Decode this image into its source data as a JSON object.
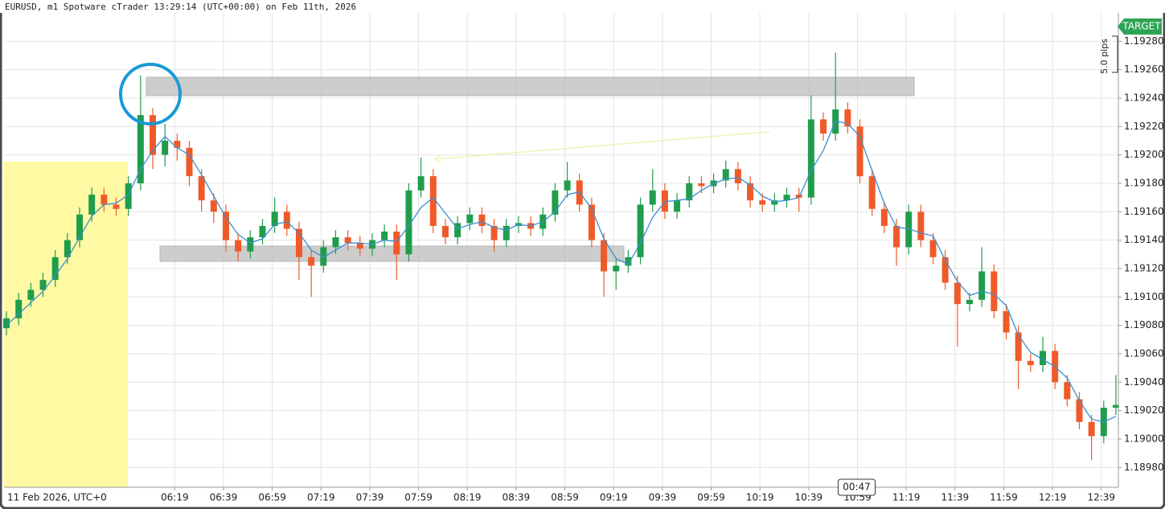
{
  "chart_data": {
    "type": "candlestick",
    "title": "EURUSD, m1 Spotware cTrader 13:29:14 (UTC+00:00) on Feb 11th, 2026",
    "x_start_label": "11 Feb 2026, UTC+0",
    "countdown": "00:47",
    "target_label": "TARGET",
    "pips_label": "5.0 pips",
    "up_color": "#1f9d4c",
    "down_color": "#f05a28",
    "ma_color": "#3a8fd0",
    "grid": true,
    "xlim": [
      "05:09",
      "12:46"
    ],
    "xticks": [
      "06:19",
      "06:39",
      "06:59",
      "07:19",
      "07:39",
      "07:59",
      "08:19",
      "08:39",
      "08:59",
      "09:19",
      "09:39",
      "09:59",
      "10:19",
      "10:39",
      "10:59",
      "11:19",
      "11:39",
      "11:59",
      "12:19",
      "12:39"
    ],
    "ylim": [
      1.18966,
      1.193
    ],
    "yticks": [
      {
        "value": 1.1898,
        "label": "1.18980"
      },
      {
        "value": 1.19,
        "label": "1.19000"
      },
      {
        "value": 1.1902,
        "label": "1.19020"
      },
      {
        "value": 1.1904,
        "label": "1.19040"
      },
      {
        "value": 1.1906,
        "label": "1.19060"
      },
      {
        "value": 1.1908,
        "label": "1.19080"
      },
      {
        "value": 1.191,
        "label": "1.19100"
      },
      {
        "value": 1.1912,
        "label": "1.19120"
      },
      {
        "value": 1.1914,
        "label": "1.19140"
      },
      {
        "value": 1.1916,
        "label": "1.19160"
      },
      {
        "value": 1.1918,
        "label": "1.19180"
      },
      {
        "value": 1.192,
        "label": "1.19200"
      },
      {
        "value": 1.1922,
        "label": "1.19220"
      },
      {
        "value": 1.1924,
        "label": "1.19240"
      },
      {
        "value": 1.1926,
        "label": "1.19260"
      },
      {
        "value": 1.1928,
        "label": "1.19280"
      }
    ],
    "x": [
      "05:10",
      "05:15",
      "05:20",
      "05:25",
      "05:30",
      "05:35",
      "05:40",
      "05:45",
      "05:50",
      "05:55",
      "06:00",
      "06:05",
      "06:10",
      "06:15",
      "06:20",
      "06:25",
      "06:30",
      "06:35",
      "06:40",
      "06:45",
      "06:50",
      "06:55",
      "07:00",
      "07:05",
      "07:10",
      "07:15",
      "07:20",
      "07:25",
      "07:30",
      "07:35",
      "07:40",
      "07:45",
      "07:50",
      "07:55",
      "08:00",
      "08:05",
      "08:10",
      "08:15",
      "08:20",
      "08:25",
      "08:30",
      "08:35",
      "08:40",
      "08:45",
      "08:50",
      "08:55",
      "09:00",
      "09:05",
      "09:10",
      "09:15",
      "09:20",
      "09:25",
      "09:30",
      "09:35",
      "09:40",
      "09:45",
      "09:50",
      "09:55",
      "10:00",
      "10:05",
      "10:10",
      "10:15",
      "10:20",
      "10:25",
      "10:30",
      "10:35",
      "10:40",
      "10:45",
      "10:50",
      "10:55",
      "11:00",
      "11:05",
      "11:10",
      "11:15",
      "11:20",
      "11:25",
      "11:30",
      "11:35",
      "11:40",
      "11:45",
      "11:50",
      "11:55",
      "12:00",
      "12:05",
      "12:10",
      "12:15",
      "12:20",
      "12:25",
      "12:30",
      "12:35",
      "12:40",
      "12:45"
    ],
    "open": [
      1.19078,
      1.19085,
      1.19098,
      1.19105,
      1.19112,
      1.19128,
      1.1914,
      1.19158,
      1.19172,
      1.19165,
      1.19162,
      1.1918,
      1.19228,
      1.192,
      1.1921,
      1.19205,
      1.19185,
      1.19168,
      1.1916,
      1.1914,
      1.19132,
      1.19142,
      1.1915,
      1.1916,
      1.19148,
      1.19128,
      1.19122,
      1.19135,
      1.19142,
      1.19138,
      1.19134,
      1.1914,
      1.19146,
      1.1913,
      1.19175,
      1.19185,
      1.1915,
      1.19142,
      1.19152,
      1.19158,
      1.1915,
      1.1914,
      1.1915,
      1.19152,
      1.19148,
      1.19158,
      1.19175,
      1.19182,
      1.19165,
      1.1914,
      1.19118,
      1.19122,
      1.19128,
      1.19165,
      1.19175,
      1.1916,
      1.19168,
      1.1918,
      1.19178,
      1.19182,
      1.1919,
      1.1918,
      1.19168,
      1.19165,
      1.19168,
      1.19172,
      1.1917,
      1.19225,
      1.19215,
      1.19232,
      1.1922,
      1.19185,
      1.19162,
      1.1915,
      1.19135,
      1.1916,
      1.1914,
      1.19128,
      1.1911,
      1.19095,
      1.19098,
      1.19118,
      1.1909,
      1.19075,
      1.19055,
      1.19052,
      1.19062,
      1.1904,
      1.19028,
      1.19012,
      1.19002,
      1.19022
    ],
    "high": [
      1.1909,
      1.19103,
      1.1911,
      1.19117,
      1.19133,
      1.19145,
      1.19163,
      1.19177,
      1.19177,
      1.1917,
      1.19185,
      1.19256,
      1.19233,
      1.19222,
      1.19215,
      1.1921,
      1.1919,
      1.19173,
      1.19165,
      1.19145,
      1.19147,
      1.19155,
      1.1917,
      1.19165,
      1.19153,
      1.19133,
      1.1914,
      1.19147,
      1.19147,
      1.19143,
      1.19145,
      1.19151,
      1.19151,
      1.1918,
      1.19198,
      1.1919,
      1.19155,
      1.19157,
      1.19163,
      1.19163,
      1.19155,
      1.19155,
      1.19157,
      1.19157,
      1.19163,
      1.1918,
      1.19195,
      1.19187,
      1.1917,
      1.19145,
      1.19127,
      1.19133,
      1.1917,
      1.1919,
      1.1918,
      1.19173,
      1.19185,
      1.19185,
      1.19187,
      1.19196,
      1.19195,
      1.19185,
      1.19173,
      1.19173,
      1.19177,
      1.19177,
      1.19242,
      1.1923,
      1.19272,
      1.19237,
      1.19225,
      1.1919,
      1.19167,
      1.19155,
      1.19165,
      1.19165,
      1.19145,
      1.19133,
      1.19115,
      1.19103,
      1.19135,
      1.19123,
      1.19095,
      1.1908,
      1.1906,
      1.19072,
      1.19067,
      1.19045,
      1.19033,
      1.19017,
      1.19027,
      1.19045
    ],
    "low": [
      1.19073,
      1.1908,
      1.19093,
      1.191,
      1.19107,
      1.19123,
      1.19135,
      1.19153,
      1.1916,
      1.19157,
      1.19157,
      1.19175,
      1.1919,
      1.19192,
      1.19196,
      1.19178,
      1.1916,
      1.19152,
      1.19132,
      1.19125,
      1.19127,
      1.19137,
      1.19145,
      1.19143,
      1.19112,
      1.191,
      1.19117,
      1.1913,
      1.19133,
      1.19129,
      1.19129,
      1.19135,
      1.19112,
      1.19125,
      1.1917,
      1.19145,
      1.19137,
      1.19137,
      1.19147,
      1.19145,
      1.19132,
      1.19135,
      1.19145,
      1.19143,
      1.19143,
      1.19153,
      1.1917,
      1.1916,
      1.19135,
      1.191,
      1.19105,
      1.19117,
      1.19123,
      1.1916,
      1.19155,
      1.19155,
      1.19163,
      1.19173,
      1.19173,
      1.19177,
      1.19175,
      1.19163,
      1.1916,
      1.1916,
      1.19163,
      1.1916,
      1.19165,
      1.1921,
      1.1921,
      1.19215,
      1.1918,
      1.19157,
      1.19145,
      1.19122,
      1.1913,
      1.19135,
      1.19123,
      1.19105,
      1.19065,
      1.1909,
      1.19093,
      1.19085,
      1.1907,
      1.19035,
      1.19047,
      1.19047,
      1.19035,
      1.19023,
      1.19007,
      1.18985,
      1.18997,
      1.19017
    ],
    "close": [
      1.19085,
      1.19098,
      1.19105,
      1.19112,
      1.19128,
      1.1914,
      1.19158,
      1.19172,
      1.19165,
      1.19162,
      1.1918,
      1.19228,
      1.192,
      1.1921,
      1.19205,
      1.19185,
      1.19168,
      1.1916,
      1.1914,
      1.19132,
      1.19142,
      1.1915,
      1.1916,
      1.19148,
      1.19128,
      1.19122,
      1.19135,
      1.19142,
      1.19138,
      1.19134,
      1.1914,
      1.19146,
      1.1913,
      1.19175,
      1.19185,
      1.1915,
      1.19142,
      1.19152,
      1.19158,
      1.1915,
      1.1914,
      1.1915,
      1.19152,
      1.19148,
      1.19158,
      1.19175,
      1.19182,
      1.19165,
      1.1914,
      1.19118,
      1.19122,
      1.19128,
      1.19165,
      1.19175,
      1.1916,
      1.19168,
      1.1918,
      1.19178,
      1.19182,
      1.1919,
      1.1918,
      1.19168,
      1.19165,
      1.19168,
      1.19172,
      1.1917,
      1.19225,
      1.19215,
      1.19232,
      1.1922,
      1.19185,
      1.19162,
      1.1915,
      1.19135,
      1.1916,
      1.1914,
      1.19128,
      1.1911,
      1.19095,
      1.19098,
      1.19118,
      1.1909,
      1.19075,
      1.19055,
      1.19052,
      1.19062,
      1.1904,
      1.19028,
      1.19012,
      1.19002,
      1.19022,
      1.19024
    ],
    "moving_average": [
      1.1908,
      1.19088,
      1.19096,
      1.19104,
      1.19115,
      1.19127,
      1.19142,
      1.19157,
      1.19165,
      1.19166,
      1.19172,
      1.1919,
      1.19203,
      1.19213,
      1.19205,
      1.192,
      1.19186,
      1.19171,
      1.19156,
      1.19144,
      1.19138,
      1.19141,
      1.19151,
      1.19153,
      1.19145,
      1.19133,
      1.19128,
      1.19133,
      1.19138,
      1.19138,
      1.19137,
      1.1914,
      1.19139,
      1.1915,
      1.19163,
      1.1917,
      1.19159,
      1.19148,
      1.19151,
      1.19153,
      1.19149,
      1.19147,
      1.19151,
      1.1915,
      1.19153,
      1.1916,
      1.19172,
      1.19174,
      1.19162,
      1.19141,
      1.19127,
      1.19123,
      1.19138,
      1.19156,
      1.19167,
      1.19168,
      1.19169,
      1.19175,
      1.1918,
      1.19183,
      1.19184,
      1.19179,
      1.19171,
      1.19167,
      1.19168,
      1.1917,
      1.19189,
      1.19203,
      1.19224,
      1.19222,
      1.19213,
      1.19189,
      1.19166,
      1.19149,
      1.19148,
      1.19145,
      1.19143,
      1.19126,
      1.19111,
      1.19101,
      1.19104,
      1.19102,
      1.19094,
      1.19073,
      1.19061,
      1.19056,
      1.19051,
      1.19043,
      1.19027,
      1.19014,
      1.19012,
      1.19016
    ]
  }
}
